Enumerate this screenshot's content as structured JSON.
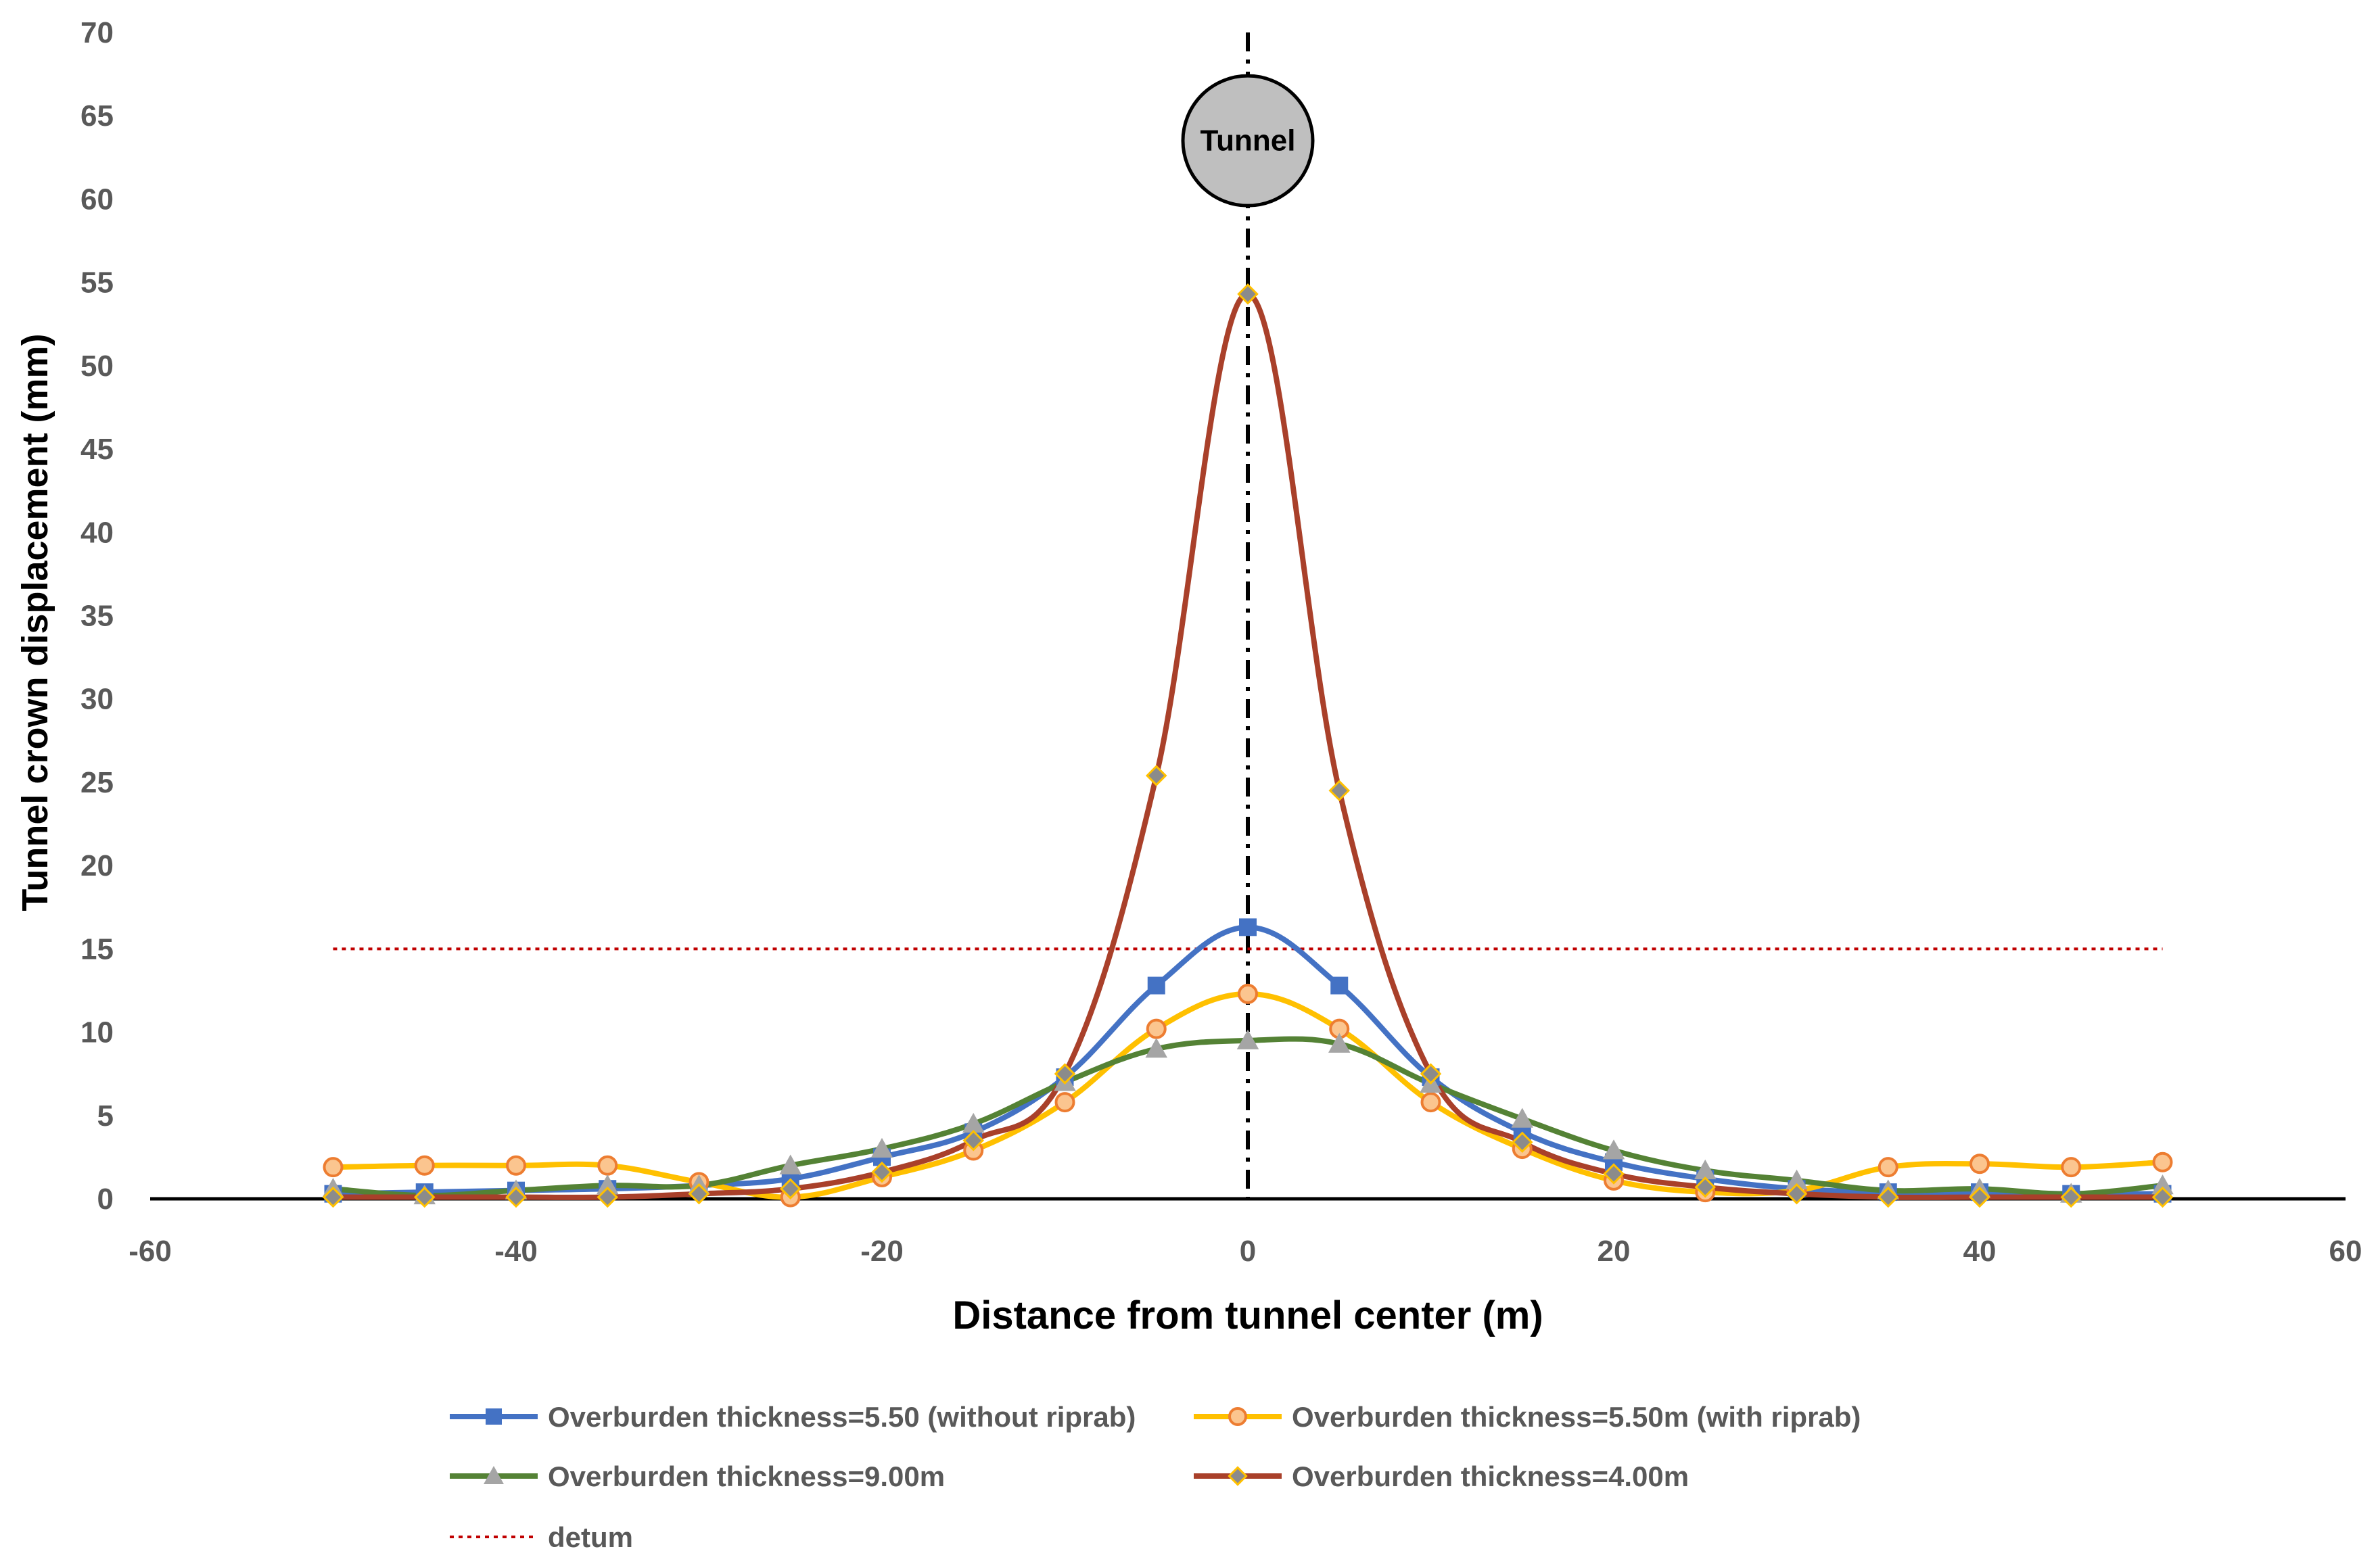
{
  "chart_data": {
    "type": "line",
    "title": "",
    "xlabel": "Distance from tunnel center (m)",
    "ylabel": "Tunnel crown displacement (mm)",
    "xlim": [
      -60,
      60
    ],
    "ylim": [
      0,
      70
    ],
    "xticks": [
      -60,
      -40,
      -20,
      0,
      20,
      40,
      60
    ],
    "yticks": [
      0,
      5,
      10,
      15,
      20,
      25,
      30,
      35,
      40,
      45,
      50,
      55,
      60,
      65,
      70
    ],
    "x": [
      -50,
      -45,
      -40,
      -35,
      -30,
      -25,
      -20,
      -15,
      -10,
      -5,
      0,
      5,
      10,
      15,
      20,
      25,
      30,
      35,
      40,
      45,
      50
    ],
    "series": [
      {
        "name": "Overburden thickness=5.50 (without riprab)",
        "color": "#4472C4",
        "marker": "square",
        "values": [
          0.3,
          0.4,
          0.5,
          0.6,
          0.8,
          1.2,
          2.5,
          4.0,
          7.3,
          12.8,
          16.3,
          12.8,
          7.3,
          4.0,
          2.2,
          1.2,
          0.6,
          0.4,
          0.4,
          0.3,
          0.3
        ]
      },
      {
        "name": "Overburden thickness=5.50m (with riprab)",
        "color": "#FFC000",
        "marker_fill": "#FBC58F",
        "marker_edge": "#ED7D31",
        "marker": "circle",
        "values": [
          1.9,
          2.0,
          2.0,
          2.0,
          1.0,
          0.1,
          1.3,
          2.9,
          5.8,
          10.2,
          12.3,
          10.2,
          5.8,
          3.0,
          1.1,
          0.4,
          0.5,
          1.9,
          2.1,
          1.9,
          2.2
        ]
      },
      {
        "name": "Overburden thickness=9.00m",
        "color": "#548235",
        "marker_fill": "#A5A5A5",
        "marker": "triangle",
        "values": [
          0.6,
          0.2,
          0.5,
          0.8,
          0.8,
          2.0,
          3.0,
          4.5,
          7.0,
          9.0,
          9.5,
          9.3,
          6.9,
          4.8,
          2.9,
          1.7,
          1.1,
          0.5,
          0.6,
          0.3,
          0.8
        ]
      },
      {
        "name": "Overburden thickness=4.00m",
        "color": "#A9402A",
        "marker_fill": "#8B8B8B",
        "marker_edge": "#FFC000",
        "marker": "diamond",
        "values": [
          0.1,
          0.1,
          0.1,
          0.1,
          0.3,
          0.6,
          1.6,
          3.5,
          7.5,
          25.4,
          54.3,
          24.5,
          7.5,
          3.4,
          1.5,
          0.7,
          0.3,
          0.1,
          0.1,
          0.1,
          0.1
        ]
      }
    ],
    "datum": {
      "name": "detum",
      "value": 15,
      "x_range": [
        -50,
        50
      ],
      "color": "#C00000"
    },
    "center_line": {
      "x": 0,
      "y_range": [
        0,
        70
      ]
    },
    "annotation": {
      "text": "Tunnel",
      "x": 0,
      "y": 63.5
    },
    "legend": {
      "position": "bottom"
    }
  }
}
